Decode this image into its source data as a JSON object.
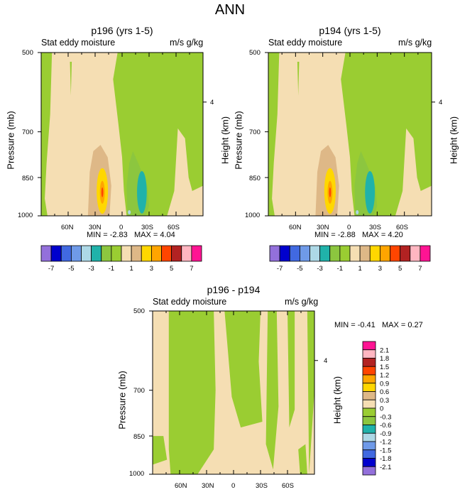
{
  "title": "ANN",
  "colors": {
    "-7": "#9370db",
    "-6": "#0000cd",
    "-5": "#4169e1",
    "-4": "#6f9ae8",
    "-3": "#add8e6",
    "-2": "#20b2aa",
    "-1": "#8cc63f",
    "0": "#9acd32",
    "1": "#f5deb3",
    "2": "#deb887",
    "3": "#ffd700",
    "4": "#ffa500",
    "5": "#ff4500",
    "6": "#b22222",
    "7": "#ffb6c1",
    "8": "#ff1493"
  },
  "chart_data": [
    {
      "id": "p196",
      "type": "heatmap",
      "title": "p196 (yrs 1-5)",
      "left_label": "Stat eddy moisture",
      "right_label": "m/s g/kg",
      "ylabel": "Pressure (mb)",
      "ylabel_right": "Height (km)",
      "yticks": [
        "500",
        "700",
        "850",
        "1000"
      ],
      "yticks_right": [
        "4"
      ],
      "xticks": [
        "60N",
        "30N",
        "0",
        "30S",
        "60S"
      ],
      "min_label": "MIN =",
      "min_value": "-2.83",
      "max_label": "MAX =",
      "max_value": "4.04",
      "colorbar": {
        "levels": [
          -7,
          -6,
          -5,
          -4,
          -3,
          -2,
          -1,
          0,
          1,
          2,
          3,
          4,
          5,
          6,
          7
        ],
        "labels": [
          "-7",
          "-5",
          "-3",
          "-1",
          "1",
          "3",
          "5",
          "7"
        ]
      },
      "peak_lat": 22,
      "peak_value": 4.04,
      "trough_lat": -22,
      "trough_value": -2.83
    },
    {
      "id": "p194",
      "type": "heatmap",
      "title": "p194 (yrs 1-5)",
      "left_label": "Stat eddy moisture",
      "right_label": "m/s g/kg",
      "ylabel": "Pressure (mb)",
      "ylabel_right": "Height (km)",
      "yticks": [
        "500",
        "700",
        "850",
        "1000"
      ],
      "yticks_right": [
        "4"
      ],
      "xticks": [
        "60N",
        "30N",
        "0",
        "30S",
        "60S"
      ],
      "min_label": "MIN =",
      "min_value": "-2.88",
      "max_label": "MAX =",
      "max_value": "4.20",
      "colorbar": {
        "levels": [
          -7,
          -6,
          -5,
          -4,
          -3,
          -2,
          -1,
          0,
          1,
          2,
          3,
          4,
          5,
          6,
          7
        ],
        "labels": [
          "-7",
          "-5",
          "-3",
          "-1",
          "1",
          "3",
          "5",
          "7"
        ]
      },
      "peak_lat": 22,
      "peak_value": 4.2,
      "trough_lat": -22,
      "trough_value": -2.88
    },
    {
      "id": "diff",
      "type": "heatmap",
      "title": "p196 - p194",
      "left_label": "Stat eddy moisture",
      "right_label": "m/s g/kg",
      "ylabel": "Pressure (mb)",
      "ylabel_right": "Height (km)",
      "yticks": [
        "500",
        "700",
        "850",
        "1000"
      ],
      "yticks_right": [
        "4"
      ],
      "xticks": [
        "60N",
        "30N",
        "0",
        "30S",
        "60S"
      ],
      "min_label": "MIN =",
      "min_value": "-0.41",
      "max_label": "MAX =",
      "max_value": "0.27",
      "colorbar": {
        "levels": [
          2.1,
          1.8,
          1.5,
          1.2,
          0.9,
          0.6,
          0.3,
          0,
          -0.3,
          -0.6,
          -0.9,
          -1.2,
          -1.5,
          -1.8,
          -2.1
        ],
        "labels": [
          "2.1",
          "1.8",
          "1.5",
          "1.2",
          "0.9",
          "0.6",
          "0.3",
          "0",
          "-0.3",
          "-0.6",
          "-0.9",
          "-1.2",
          "-1.5",
          "-1.8",
          "-2.1"
        ]
      }
    }
  ]
}
